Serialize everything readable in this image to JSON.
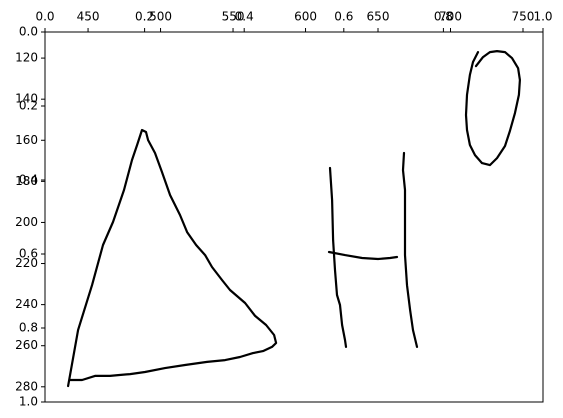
{
  "chart_data": {
    "type": "line",
    "xlim": [
      0,
      1
    ],
    "ylim": [
      0,
      1
    ],
    "y_inverted": true,
    "xticks": [
      {
        "value": 0,
        "label": "0.0"
      },
      {
        "value": 0.2,
        "label": "0.2"
      },
      {
        "value": 0.4,
        "label": "0.4"
      },
      {
        "value": 0.6,
        "label": "0.6"
      },
      {
        "value": 0.8,
        "label": "0.8"
      },
      {
        "value": 1,
        "label": "1.0"
      }
    ],
    "yticks": [
      {
        "value": 0,
        "label": "0.0"
      },
      {
        "value": 0.2,
        "label": "0.2"
      },
      {
        "value": 0.4,
        "label": "0.4"
      },
      {
        "value": 0.6,
        "label": "0.6"
      },
      {
        "value": 0.8,
        "label": "0.8"
      },
      {
        "value": 1,
        "label": "1.0"
      }
    ],
    "x2lim": [
      420.3,
      763.8
    ],
    "y2lim": [
      107.3,
      287.4
    ],
    "x2ticks": [
      450,
      500,
      550,
      600,
      650,
      700,
      750
    ],
    "y2ticks": [
      120,
      140,
      160,
      180,
      200,
      220,
      240,
      260,
      280
    ],
    "series": [
      {
        "color": "#000000",
        "axis": "y2",
        "x": [
          436.2,
          443.1,
          452.8,
          460.3,
          467.2,
          474.8,
          480.3,
          483.8,
          487.2,
          490,
          491.4,
          496.2,
          501.0,
          506.6,
          513.4,
          518.3,
          524.5,
          530.7,
          535.5,
          542.4,
          547.9,
          558.3,
          565.2,
          572.8,
          578.3,
          579.7,
          576.9,
          570.7,
          563.8,
          554.8,
          544.5,
          532.1,
          516.9,
          503.1,
          489.3,
          479,
          470.7,
          465.2,
          454.8,
          445.9,
          437.6
        ],
        "values": [
          279.6,
          252.3,
          230.4,
          211.0,
          199.8,
          184.2,
          169.6,
          162.3,
          155.0,
          156.0,
          159.9,
          166.2,
          175.5,
          186.7,
          196.4,
          204.7,
          211.0,
          215.9,
          221.7,
          228.0,
          232.9,
          239.2,
          245.5,
          249.9,
          254.8,
          258.7,
          260.6,
          262.6,
          263.6,
          265.5,
          267.0,
          267.9,
          269.4,
          270.9,
          272.8,
          273.8,
          274.3,
          274.7,
          274.7,
          276.7,
          276.7
        ]
      },
      {
        "color": "#000000",
        "axis": "y2",
        "x": [
          616.9,
          618.3,
          619,
          620.3,
          621.7,
          623.8,
          625.2,
          627.2,
          627.9
        ],
        "values": [
          173.5,
          189.1,
          208.6,
          223.2,
          235.3,
          240.2,
          249.9,
          257.2,
          260.6
        ]
      },
      {
        "color": "#000000",
        "axis": "y2",
        "x": [
          616.2,
          627.2,
          639,
          650,
          658.3,
          663.1
        ],
        "values": [
          214.4,
          215.9,
          217.3,
          217.8,
          217.3,
          216.8
        ]
      },
      {
        "color": "#000000",
        "axis": "y2",
        "x": [
          667.9,
          667.2,
          668.6,
          668.6,
          668.6,
          670,
          672.1,
          674.1,
          676.9
        ],
        "values": [
          166.2,
          174.5,
          184.2,
          198.8,
          215.9,
          230.5,
          242.6,
          252.4,
          260.6
        ]
      },
      {
        "color": "#000000",
        "axis": "y2",
        "x": [
          719,
          715.5,
          713.4,
          711.4,
          710.7,
          711.4,
          713.4,
          716.9,
          721.7,
          727.2,
          732.1,
          737.6,
          741,
          744.5,
          747.2,
          747.9,
          746.6,
          742.4,
          737.6,
          732.1,
          727.2,
          722.4,
          717.6
        ],
        "values": [
          117.1,
          121.9,
          128.2,
          137.9,
          147.7,
          155,
          162.3,
          167.2,
          171.1,
          172.1,
          168.7,
          162.8,
          155.5,
          146.7,
          137.9,
          130.6,
          124.9,
          120,
          117.1,
          116.6,
          117.1,
          119.5,
          123.9
        ]
      }
    ]
  }
}
